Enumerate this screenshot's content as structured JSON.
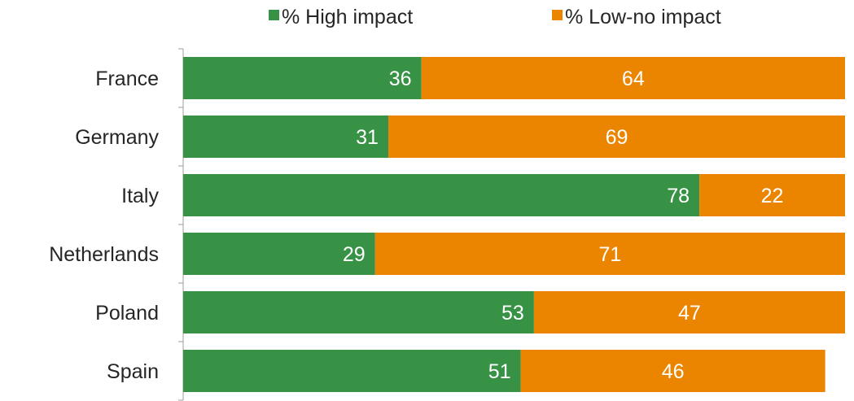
{
  "colors": {
    "high": "#379245",
    "low": "#EB8500",
    "axis": "#9e9e9e",
    "label_text": "#ffffff",
    "category_text": "#262626"
  },
  "chart_data": {
    "type": "bar",
    "orientation": "horizontal",
    "stacked": true,
    "title": "",
    "xlabel": "",
    "ylabel": "",
    "xlim": [
      0,
      100
    ],
    "grid": false,
    "legend_position": "top",
    "categories": [
      "France",
      "Germany",
      "Italy",
      "Netherlands",
      "Poland",
      "Spain"
    ],
    "series": [
      {
        "name": "% High impact",
        "values": [
          36,
          31,
          78,
          29,
          53,
          51
        ],
        "color": "#379245"
      },
      {
        "name": "% Low-no impact",
        "values": [
          64,
          69,
          22,
          71,
          47,
          46
        ],
        "color": "#EB8500"
      }
    ]
  }
}
